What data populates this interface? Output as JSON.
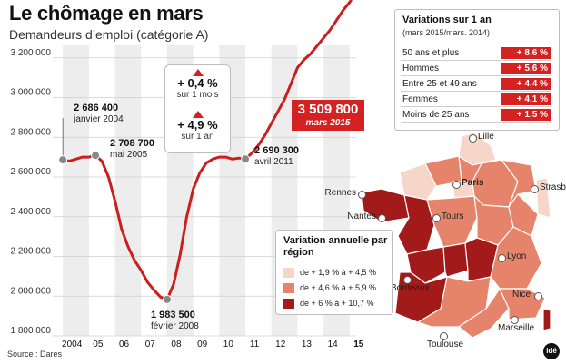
{
  "header": {
    "title": "Le chômage en mars",
    "subtitle": "Demandeurs d’emploi (catégorie A)"
  },
  "source": "Source : Dares",
  "logo_text": "idé",
  "colors": {
    "line": "#cc1e1e",
    "accent": "#d42222",
    "dark": "#a31a1a",
    "medium": "#e5846a",
    "light": "#f6d6c8",
    "grid_band": "#ededed"
  },
  "chart_data": {
    "type": "line",
    "x_ticks": [
      "2004",
      "05",
      "06",
      "07",
      "08",
      "09",
      "10",
      "11",
      "12",
      "13",
      "14",
      "15"
    ],
    "y_ticks": [
      "1 800 000",
      "2 000 000",
      "2 200 000",
      "2 400 000",
      "2 600 000",
      "2 800 000",
      "3 000 000",
      "3 200 000"
    ],
    "ylim": [
      1800000,
      3400000
    ],
    "xlim": [
      2003.75,
      2015.25
    ],
    "series": [
      {
        "x": [
          2004.0,
          2004.25,
          2004.5,
          2004.75,
          2005.0,
          2005.25,
          2005.5,
          2005.75,
          2006.0,
          2006.25,
          2006.5,
          2006.75,
          2007.0,
          2007.25,
          2007.5,
          2007.75,
          2008.0,
          2008.25,
          2008.5,
          2008.75,
          2009.0,
          2009.25,
          2009.5,
          2009.75,
          2010.0,
          2010.25,
          2010.5,
          2010.75,
          2011.0,
          2011.25,
          2011.5,
          2011.75,
          2012.0,
          2012.25,
          2012.5,
          2012.75,
          2013.0,
          2013.25,
          2013.5,
          2013.75,
          2014.0,
          2014.25,
          2014.5,
          2014.75,
          2015.0,
          2015.17
        ],
        "y": [
          2686400,
          2680000,
          2690000,
          2700000,
          2700000,
          2708700,
          2680000,
          2600000,
          2480000,
          2340000,
          2250000,
          2180000,
          2130000,
          2070000,
          2030000,
          1995000,
          1983500,
          2060000,
          2210000,
          2400000,
          2540000,
          2620000,
          2670000,
          2690000,
          2700000,
          2700000,
          2690000,
          2695000,
          2690300,
          2720000,
          2760000,
          2810000,
          2870000,
          2930000,
          2990000,
          3070000,
          3150000,
          3190000,
          3220000,
          3260000,
          3300000,
          3340000,
          3390000,
          3440000,
          3480000,
          3509800
        ]
      }
    ],
    "annotations": [
      {
        "value": "2 686 400",
        "date": "janvier 2004"
      },
      {
        "value": "2 708 700",
        "date": "mai 2005"
      },
      {
        "value": "1 983 500",
        "date": "février 2008"
      },
      {
        "value": "2 690 300",
        "date": "avril 2011"
      },
      {
        "value": "3 509 800",
        "date": "mars 2015"
      }
    ]
  },
  "changes": [
    {
      "value": "+ 0,4 %",
      "period": "sur 1 mois"
    },
    {
      "value": "+ 4,9 %",
      "period": "sur 1 an"
    }
  ],
  "variations": {
    "title": "Variations sur 1 an",
    "subtitle": "(mars 2015/mars. 2014)",
    "rows": [
      {
        "label": "50 ans et plus",
        "value": "+ 8,6 %"
      },
      {
        "label": "Hommes",
        "value": "+ 5,6 %"
      },
      {
        "label": "Entre 25 et 49 ans",
        "value": "+ 4,4 %"
      },
      {
        "label": "Femmes",
        "value": "+ 4,1 %"
      },
      {
        "label": "Moins de 25 ans",
        "value": "+ 1,5 %"
      }
    ]
  },
  "legend": {
    "title": "Variation annuelle par région",
    "items": [
      {
        "label": "de + 1,9 % à + 4,5 %",
        "color": "#f6d6c8"
      },
      {
        "label": "de + 4,6 % à + 5,9 %",
        "color": "#e5846a"
      },
      {
        "label": "de + 6 % à + 10,7 %",
        "color": "#a31a1a"
      }
    ]
  },
  "map": {
    "cities": [
      "Lille",
      "Rennes",
      "Paris",
      "Strasbourg",
      "Nantes",
      "Tours",
      "Lyon",
      "Bordeaux",
      "Nice",
      "Marseille",
      "Toulouse"
    ]
  }
}
